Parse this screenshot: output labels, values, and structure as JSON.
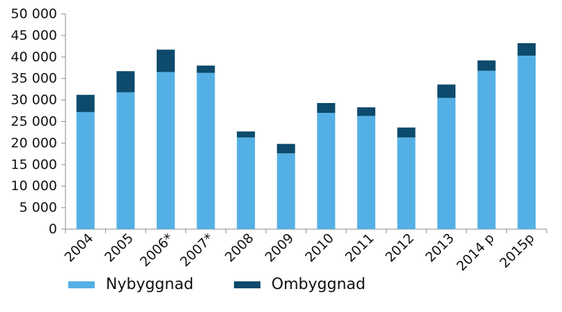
{
  "chart_data": {
    "type": "bar",
    "stacked": true,
    "categories": [
      "2004",
      "2005",
      "2006*",
      "2007*",
      "2008",
      "2009",
      "2010",
      "2011",
      "2012",
      "2013",
      "2014 p",
      "2015p"
    ],
    "series": [
      {
        "name": "Nybyggnad",
        "color": "#54b0e4",
        "values": [
          27200,
          31800,
          36500,
          36300,
          21300,
          17600,
          27000,
          26300,
          21300,
          30500,
          36800,
          40300
        ]
      },
      {
        "name": "Ombyggnad",
        "color": "#0d4a6b",
        "values": [
          4000,
          4900,
          5200,
          1700,
          1400,
          2200,
          2300,
          2000,
          2300,
          3100,
          2400,
          2900
        ]
      }
    ],
    "yticks": [
      "0",
      "5 000",
      "10 000",
      "15 000",
      "20 000",
      "25 000",
      "30 000",
      "35 000",
      "40 000",
      "45 000",
      "50 000"
    ],
    "ylim": [
      0,
      50000
    ],
    "title": "",
    "xlabel": "",
    "ylabel": "",
    "grid": false,
    "legend_position": "bottom-left"
  }
}
